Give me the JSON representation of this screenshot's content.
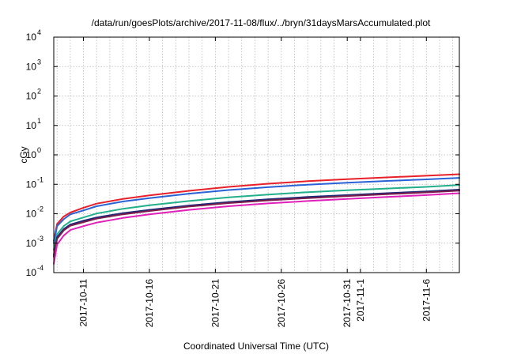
{
  "chart_data": {
    "type": "line",
    "title": "/data/run/goesPlots/archive/2017-11-08/flux/../bryn/31daysMarsAccumulated.plot",
    "xlabel": "Coordinated Universal Time (UTC)",
    "ylabel": "cGy",
    "y_scale": "log",
    "ylim": [
      0.0001,
      10000
    ],
    "xlim": [
      "2017-10-08T18:00",
      "2017-11-08T12:00"
    ],
    "grid": true,
    "y_ticks": [
      {
        "base": "10",
        "exp": "-4",
        "value": 0.0001
      },
      {
        "base": "10",
        "exp": "-3",
        "value": 0.001
      },
      {
        "base": "10",
        "exp": "-2",
        "value": 0.01
      },
      {
        "base": "10",
        "exp": "-1",
        "value": 0.1
      },
      {
        "base": "10",
        "exp": "0",
        "value": 1
      },
      {
        "base": "10",
        "exp": "1",
        "value": 10
      },
      {
        "base": "10",
        "exp": "2",
        "value": 100
      },
      {
        "base": "10",
        "exp": "3",
        "value": 1000
      },
      {
        "base": "10",
        "exp": "4",
        "value": 10000
      }
    ],
    "x_ticks": [
      {
        "label": "2017-10-11",
        "date": "2017-10-11"
      },
      {
        "label": "2017-10-16",
        "date": "2017-10-16"
      },
      {
        "label": "2017-10-21",
        "date": "2017-10-21"
      },
      {
        "label": "2017-10-26",
        "date": "2017-10-26"
      },
      {
        "label": "2017-10-31",
        "date": "2017-10-31"
      },
      {
        "label": "2017-11-1",
        "date": "2017-11-01"
      },
      {
        "label": "2017-11-6",
        "date": "2017-11-06"
      }
    ],
    "x_minor_grid_days": 1,
    "series": [
      {
        "color": "#e8202a",
        "x": [
          "2017-10-08T18:00",
          "2017-10-09",
          "2017-10-09T12:00",
          "2017-10-10",
          "2017-10-11",
          "2017-10-12",
          "2017-10-14",
          "2017-10-16",
          "2017-10-19",
          "2017-10-22",
          "2017-10-25",
          "2017-10-28",
          "2017-10-31",
          "2017-11-03",
          "2017-11-06",
          "2017-11-08T12:00"
        ],
        "y": [
          0.0012,
          0.0045,
          0.008,
          0.011,
          0.016,
          0.022,
          0.032,
          0.042,
          0.06,
          0.082,
          0.105,
          0.128,
          0.15,
          0.172,
          0.195,
          0.22
        ]
      },
      {
        "color": "#2a62d6",
        "x": [
          "2017-10-08T18:00",
          "2017-10-09",
          "2017-10-09T12:00",
          "2017-10-10",
          "2017-10-11",
          "2017-10-12",
          "2017-10-14",
          "2017-10-16",
          "2017-10-19",
          "2017-10-22",
          "2017-10-25",
          "2017-10-28",
          "2017-10-31",
          "2017-11-03",
          "2017-11-06",
          "2017-11-08T12:00"
        ],
        "y": [
          0.001,
          0.0038,
          0.0065,
          0.0095,
          0.013,
          0.018,
          0.026,
          0.034,
          0.048,
          0.064,
          0.08,
          0.097,
          0.113,
          0.13,
          0.147,
          0.165
        ]
      },
      {
        "color": "#22b08c",
        "x": [
          "2017-10-08T18:00",
          "2017-10-09",
          "2017-10-09T12:00",
          "2017-10-10",
          "2017-10-11",
          "2017-10-12",
          "2017-10-14",
          "2017-10-16",
          "2017-10-19",
          "2017-10-22",
          "2017-10-25",
          "2017-10-28",
          "2017-10-31",
          "2017-11-03",
          "2017-11-06",
          "2017-11-08T12:00"
        ],
        "y": [
          0.0006,
          0.002,
          0.0038,
          0.0055,
          0.0075,
          0.0102,
          0.0148,
          0.0195,
          0.027,
          0.036,
          0.045,
          0.054,
          0.063,
          0.072,
          0.082,
          0.095
        ]
      },
      {
        "color": "#1b2a78",
        "x": [
          "2017-10-08T18:00",
          "2017-10-09",
          "2017-10-09T12:00",
          "2017-10-10",
          "2017-10-11",
          "2017-10-12",
          "2017-10-14",
          "2017-10-16",
          "2017-10-19",
          "2017-10-22",
          "2017-10-25",
          "2017-10-28",
          "2017-10-31",
          "2017-11-03",
          "2017-11-06",
          "2017-11-08T12:00"
        ],
        "y": [
          0.0004,
          0.0016,
          0.003,
          0.0043,
          0.0058,
          0.0075,
          0.0105,
          0.0135,
          0.019,
          0.025,
          0.031,
          0.037,
          0.043,
          0.05,
          0.057,
          0.066
        ]
      },
      {
        "color": "#7a1d4a",
        "x": [
          "2017-10-08T18:00",
          "2017-10-09",
          "2017-10-09T12:00",
          "2017-10-10",
          "2017-10-11",
          "2017-10-12",
          "2017-10-14",
          "2017-10-16",
          "2017-10-19",
          "2017-10-22",
          "2017-10-25",
          "2017-10-28",
          "2017-10-31",
          "2017-11-03",
          "2017-11-06",
          "2017-11-08T12:00"
        ],
        "y": [
          0.00035,
          0.0014,
          0.0027,
          0.0039,
          0.0052,
          0.0068,
          0.0096,
          0.0124,
          0.0175,
          0.023,
          0.0285,
          0.034,
          0.04,
          0.046,
          0.053,
          0.061
        ]
      },
      {
        "color": "#e020b8",
        "x": [
          "2017-10-08T18:00",
          "2017-10-09",
          "2017-10-09T12:00",
          "2017-10-10",
          "2017-10-11",
          "2017-10-12",
          "2017-10-14",
          "2017-10-16",
          "2017-10-19",
          "2017-10-22",
          "2017-10-25",
          "2017-10-28",
          "2017-10-31",
          "2017-11-03",
          "2017-11-06",
          "2017-11-08T12:00"
        ],
        "y": [
          0.0002,
          0.0009,
          0.0018,
          0.0028,
          0.0038,
          0.005,
          0.0072,
          0.0095,
          0.0135,
          0.018,
          0.0225,
          0.027,
          0.032,
          0.037,
          0.043,
          0.05
        ]
      }
    ]
  }
}
